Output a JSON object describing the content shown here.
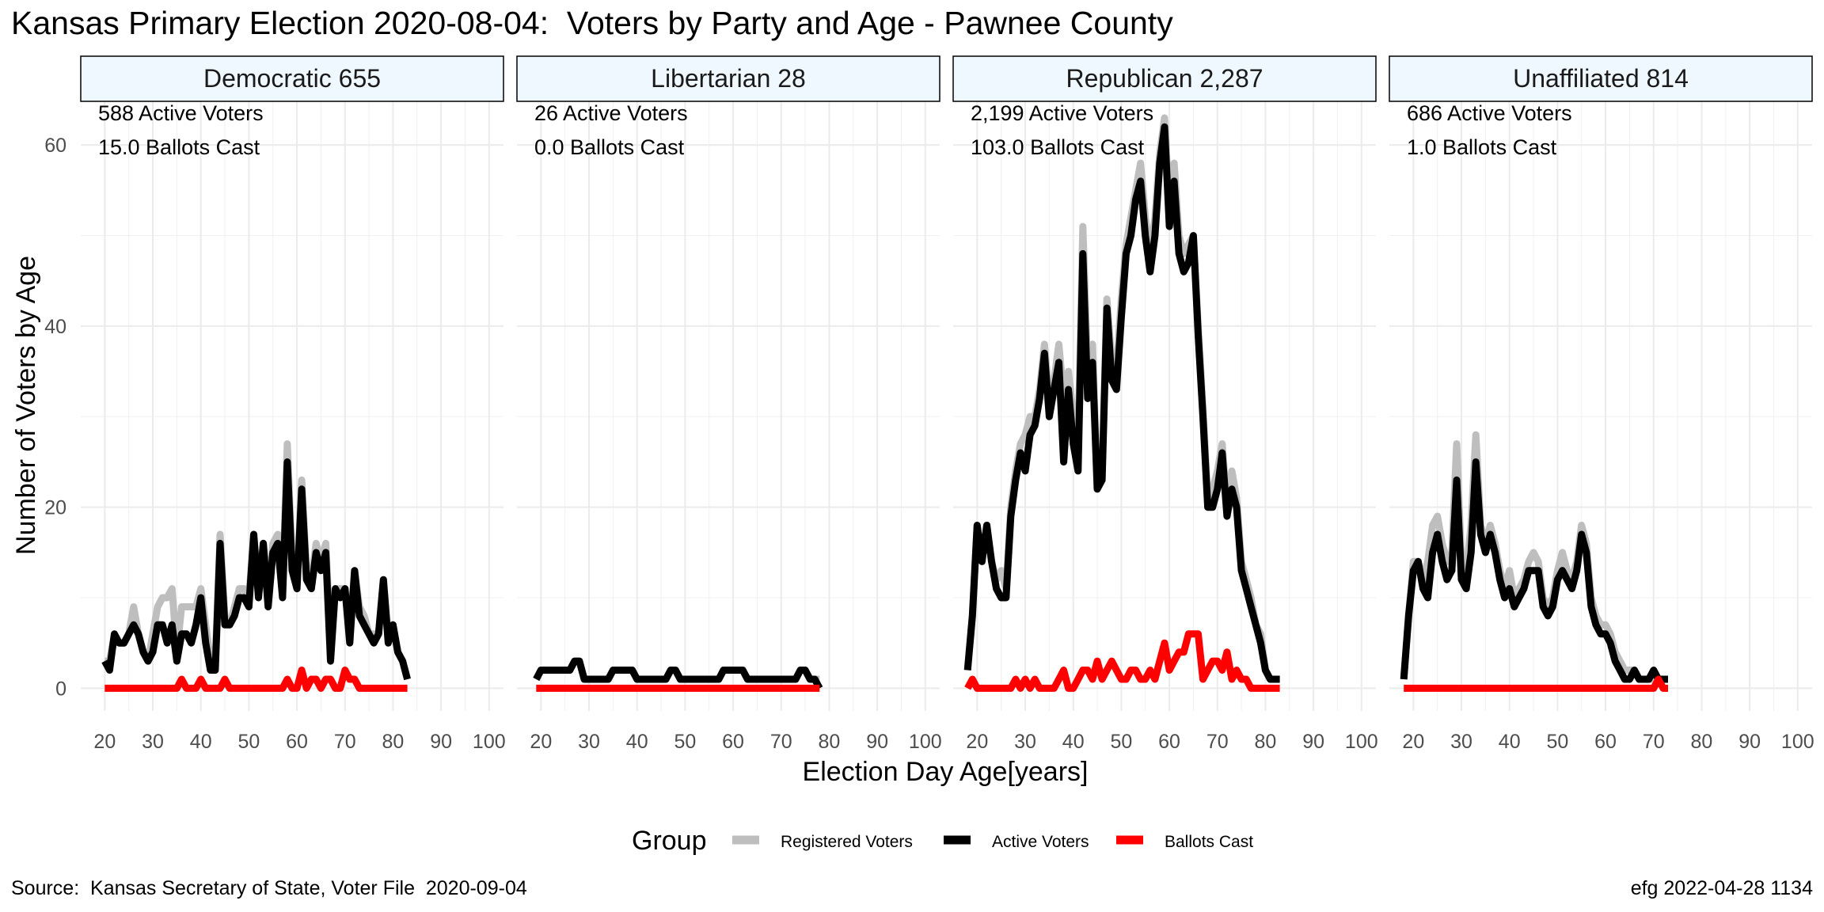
{
  "title": "Kansas Primary Election 2020-08-04:  Voters by Party and Age - Pawnee County",
  "source": "Source:  Kansas Secretary of State, Voter File  2020-09-04",
  "stamp": "efg 2022-04-28 1134",
  "chart_data": {
    "type": "line",
    "xlabel": "Election Day Age[years]",
    "ylabel": "Number of Voters by Age",
    "xlim": [
      15,
      103
    ],
    "ylim": [
      -2.5,
      65
    ],
    "x_ticks": [
      20,
      30,
      40,
      50,
      60,
      70,
      80,
      90,
      100
    ],
    "y_ticks": [
      0,
      20,
      40,
      60
    ],
    "grid": true,
    "legend": {
      "title": "Group",
      "position": "bottom",
      "entries": [
        {
          "label": "Registered Voters",
          "color": "#bebebe"
        },
        {
          "label": "Active Voters",
          "color": "#000000"
        },
        {
          "label": "Ballots Cast",
          "color": "#ff0000"
        }
      ]
    },
    "panels": [
      {
        "strip": "Democratic 655",
        "annotations": [
          "588 Active Voters",
          "15.0 Ballots Cast"
        ],
        "x_start": 20,
        "series": [
          {
            "name": "Registered Voters",
            "values": [
              3,
              3,
              6,
              5,
              5,
              6,
              9,
              6,
              4,
              3,
              6,
              9,
              10,
              10,
              11,
              4,
              9,
              9,
              9,
              9,
              11,
              7,
              3,
              3,
              17,
              8,
              7,
              9,
              11,
              11,
              10,
              17,
              11,
              16,
              10,
              16,
              17,
              11,
              27,
              14,
              12,
              23,
              13,
              12,
              16,
              14,
              16,
              5,
              11,
              11,
              11,
              6,
              13,
              9,
              8,
              6,
              6,
              6,
              12,
              6,
              7,
              4,
              3,
              1
            ]
          },
          {
            "name": "Active Voters",
            "values": [
              3,
              2,
              6,
              5,
              5,
              6,
              7,
              6,
              4,
              3,
              4,
              7,
              7,
              5,
              7,
              3,
              6,
              6,
              5,
              7,
              10,
              5,
              2,
              2,
              16,
              7,
              7,
              8,
              10,
              10,
              9,
              17,
              10,
              16,
              9,
              15,
              16,
              10,
              25,
              13,
              11,
              22,
              12,
              11,
              15,
              13,
              15,
              3,
              11,
              10,
              11,
              5,
              13,
              8,
              7,
              6,
              5,
              6,
              12,
              5,
              7,
              4,
              3,
              1
            ]
          },
          {
            "name": "Ballots Cast",
            "values": [
              0,
              0,
              0,
              0,
              0,
              0,
              0,
              0,
              0,
              0,
              0,
              0,
              0,
              0,
              0,
              0,
              1,
              0,
              0,
              0,
              1,
              0,
              0,
              0,
              0,
              1,
              0,
              0,
              0,
              0,
              0,
              0,
              0,
              0,
              0,
              0,
              0,
              0,
              1,
              0,
              0,
              2,
              0,
              1,
              1,
              0,
              1,
              1,
              0,
              0,
              2,
              1,
              1,
              0,
              0,
              0,
              0,
              0,
              0,
              0,
              0,
              0,
              0,
              0
            ]
          }
        ]
      },
      {
        "strip": "Libertarian 28",
        "annotations": [
          "26 Active Voters",
          "0.0 Ballots Cast"
        ],
        "x_start": 19,
        "series": [
          {
            "name": "Registered Voters",
            "values": [
              1,
              2,
              2,
              2,
              2,
              2,
              2,
              2,
              3,
              3,
              1,
              1,
              1,
              1,
              1,
              1,
              2,
              2,
              2,
              2,
              2,
              1,
              1,
              1,
              1,
              1,
              1,
              1,
              2,
              2,
              1,
              1,
              1,
              1,
              1,
              1,
              1,
              1,
              1,
              2,
              2,
              2,
              2,
              2,
              1,
              1,
              1,
              1,
              1,
              1,
              1,
              1,
              1,
              1,
              1,
              2,
              2,
              1,
              1,
              1
            ]
          },
          {
            "name": "Active Voters",
            "values": [
              1,
              2,
              2,
              2,
              2,
              2,
              2,
              2,
              3,
              3,
              1,
              1,
              1,
              1,
              1,
              1,
              2,
              2,
              2,
              2,
              2,
              1,
              1,
              1,
              1,
              1,
              1,
              1,
              2,
              2,
              1,
              1,
              1,
              1,
              1,
              1,
              1,
              1,
              1,
              2,
              2,
              2,
              2,
              2,
              1,
              1,
              1,
              1,
              1,
              1,
              1,
              1,
              1,
              1,
              1,
              2,
              2,
              1,
              1,
              0
            ]
          },
          {
            "name": "Ballots Cast",
            "values": [
              0,
              0,
              0,
              0,
              0,
              0,
              0,
              0,
              0,
              0,
              0,
              0,
              0,
              0,
              0,
              0,
              0,
              0,
              0,
              0,
              0,
              0,
              0,
              0,
              0,
              0,
              0,
              0,
              0,
              0,
              0,
              0,
              0,
              0,
              0,
              0,
              0,
              0,
              0,
              0,
              0,
              0,
              0,
              0,
              0,
              0,
              0,
              0,
              0,
              0,
              0,
              0,
              0,
              0,
              0,
              0,
              0,
              0,
              0,
              0
            ]
          }
        ]
      },
      {
        "strip": "Republican 2,287",
        "annotations": [
          "2,199 Active Voters",
          "103.0 Ballots Cast"
        ],
        "x_start": 18,
        "series": [
          {
            "name": "Registered Voters",
            "values": [
              2,
              8,
              18,
              14,
              18,
              14,
              12,
              13,
              11,
              20,
              24,
              27,
              28,
              30,
              30,
              33,
              38,
              32,
              34,
              38,
              32,
              35,
              30,
              27,
              51,
              35,
              38,
              22,
              24,
              43,
              36,
              35,
              43,
              49,
              52,
              55,
              58,
              52,
              48,
              52,
              59,
              63,
              53,
              58,
              50,
              48,
              49,
              50,
              40,
              31,
              21,
              22,
              24,
              27,
              20,
              24,
              21,
              14,
              12,
              10,
              7,
              6,
              2,
              1,
              1,
              1
            ]
          },
          {
            "name": "Active Voters",
            "values": [
              2,
              8,
              18,
              14,
              18,
              14,
              11,
              10,
              10,
              19,
              23,
              26,
              24,
              28,
              29,
              32,
              37,
              30,
              33,
              36,
              25,
              33,
              27,
              24,
              48,
              32,
              36,
              22,
              23,
              42,
              34,
              33,
              41,
              48,
              50,
              54,
              56,
              50,
              46,
              50,
              58,
              62,
              51,
              56,
              48,
              46,
              47,
              50,
              39,
              30,
              20,
              20,
              22,
              26,
              19,
              22,
              20,
              13,
              11,
              9,
              7,
              5,
              2,
              1,
              1,
              1
            ]
          },
          {
            "name": "Ballots Cast",
            "values": [
              0,
              1,
              0,
              0,
              0,
              0,
              0,
              0,
              0,
              0,
              1,
              0,
              1,
              0,
              1,
              0,
              0,
              0,
              0,
              1,
              2,
              0,
              0,
              1,
              2,
              2,
              1,
              3,
              1,
              2,
              3,
              2,
              1,
              1,
              2,
              2,
              1,
              1,
              2,
              1,
              3,
              5,
              2,
              3,
              4,
              4,
              6,
              6,
              6,
              1,
              2,
              3,
              3,
              2,
              4,
              1,
              2,
              1,
              1,
              0,
              0,
              0,
              0,
              0,
              0,
              0
            ]
          }
        ]
      },
      {
        "strip": "Unaffiliated 814",
        "annotations": [
          "686 Active Voters",
          "1.0 Ballots Cast"
        ],
        "x_start": 18,
        "series": [
          {
            "name": "Registered Voters",
            "values": [
              1,
              8,
              14,
              14,
              12,
              14,
              18,
              19,
              16,
              14,
              15,
              27,
              14,
              13,
              18,
              28,
              18,
              16,
              18,
              16,
              13,
              11,
              13,
              10,
              11,
              12,
              14,
              15,
              14,
              10,
              9,
              10,
              13,
              15,
              13,
              12,
              14,
              18,
              16,
              10,
              8,
              7,
              7,
              6,
              4,
              3,
              2,
              2,
              2,
              1,
              1,
              1,
              1,
              1,
              1,
              1
            ]
          },
          {
            "name": "Active Voters",
            "values": [
              1,
              8,
              13,
              14,
              11,
              10,
              15,
              17,
              14,
              12,
              13,
              23,
              12,
              11,
              15,
              25,
              17,
              15,
              17,
              15,
              12,
              10,
              11,
              9,
              10,
              11,
              13,
              13,
              13,
              9,
              8,
              9,
              12,
              13,
              12,
              11,
              13,
              17,
              15,
              9,
              7,
              6,
              6,
              5,
              3,
              2,
              1,
              1,
              2,
              1,
              1,
              1,
              2,
              1,
              1,
              1
            ]
          },
          {
            "name": "Ballots Cast",
            "values": [
              0,
              0,
              0,
              0,
              0,
              0,
              0,
              0,
              0,
              0,
              0,
              0,
              0,
              0,
              0,
              0,
              0,
              0,
              0,
              0,
              0,
              0,
              0,
              0,
              0,
              0,
              0,
              0,
              0,
              0,
              0,
              0,
              0,
              0,
              0,
              0,
              0,
              0,
              0,
              0,
              0,
              0,
              0,
              0,
              0,
              0,
              0,
              0,
              0,
              0,
              0,
              0,
              0,
              1,
              0,
              0
            ]
          }
        ]
      }
    ]
  }
}
